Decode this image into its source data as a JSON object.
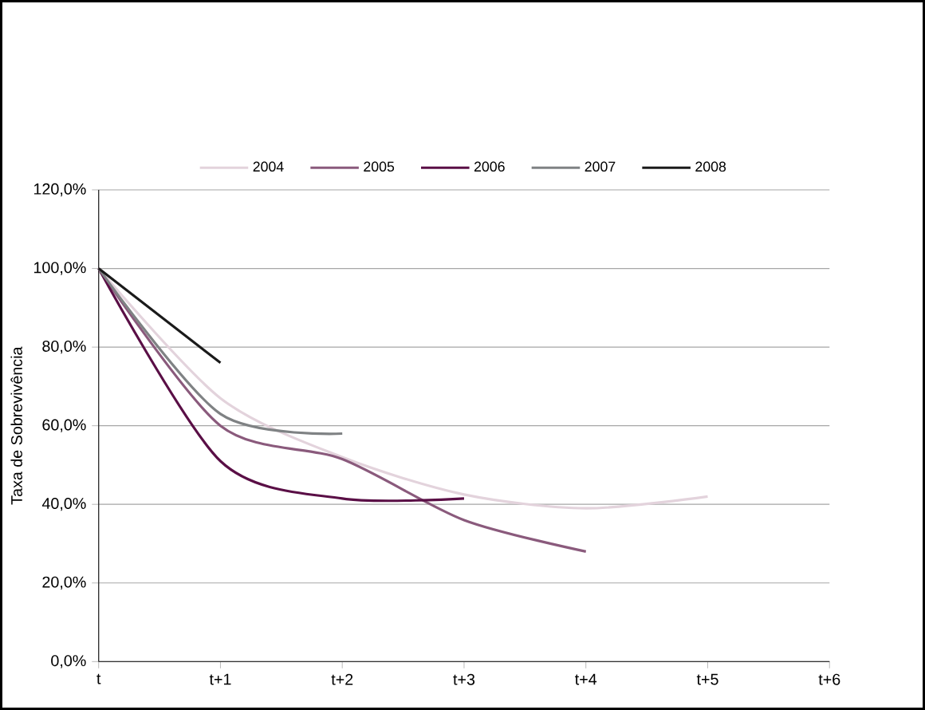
{
  "chart_data": {
    "type": "line",
    "ylabel": "Taxa de Sobrevivência",
    "categories": [
      "t",
      "t+1",
      "t+2",
      "t+3",
      "t+4",
      "t+5",
      "t+6"
    ],
    "series": [
      {
        "name": "2004",
        "color": "#e3d3dc",
        "values": [
          100,
          67,
          52,
          42.5,
          39,
          42,
          null
        ]
      },
      {
        "name": "2005",
        "color": "#8a5a7c",
        "values": [
          100,
          60,
          51.5,
          36,
          28,
          null,
          null
        ]
      },
      {
        "name": "2006",
        "color": "#5a0f46",
        "values": [
          100,
          51,
          41.5,
          41.5,
          null,
          null,
          null
        ]
      },
      {
        "name": "2007",
        "color": "#7f8284",
        "values": [
          100,
          63,
          58,
          null,
          null,
          null,
          null
        ]
      },
      {
        "name": "2008",
        "color": "#1a1a1a",
        "values": [
          100,
          76,
          null,
          null,
          null,
          null,
          null
        ]
      }
    ],
    "ylim": [
      0,
      120
    ],
    "yticks": [
      {
        "value": 0,
        "label": "0,0%"
      },
      {
        "value": 20,
        "label": "20,0%"
      },
      {
        "value": 40,
        "label": "40,0%"
      },
      {
        "value": 60,
        "label": "60,0%"
      },
      {
        "value": 80,
        "label": "80,0%"
      },
      {
        "value": 100,
        "label": "100,0%"
      },
      {
        "value": 120,
        "label": "120,0%"
      }
    ],
    "grid": "y",
    "legend": "top",
    "marker": "none",
    "line_style": "solid"
  }
}
